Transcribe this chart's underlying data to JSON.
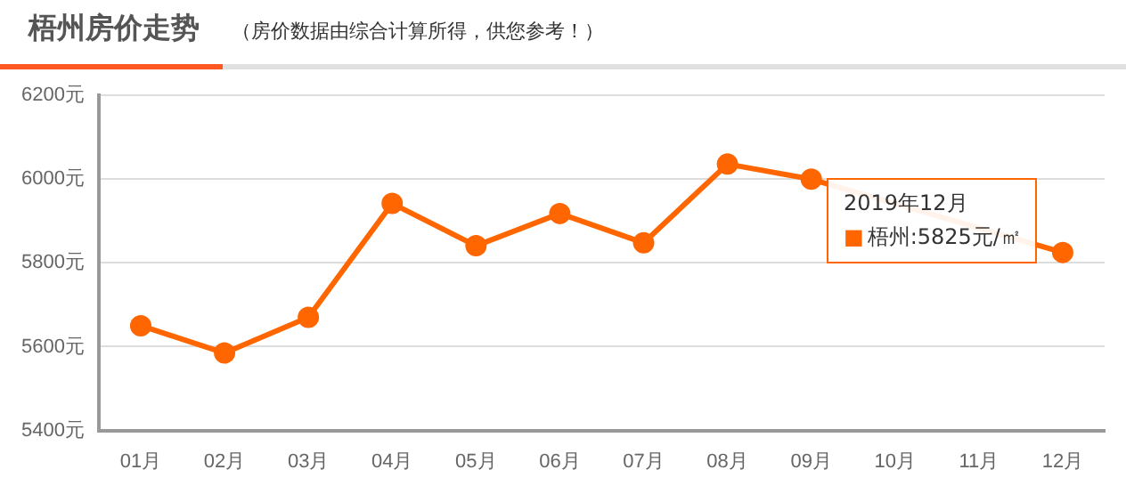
{
  "chart_data": {
    "type": "line",
    "title": "梧州房价走势",
    "subtitle": "（房价数据由综合计算所得，供您参考！）",
    "categories": [
      "01月",
      "02月",
      "03月",
      "04月",
      "05月",
      "06月",
      "07月",
      "08月",
      "09月",
      "10月",
      "11月",
      "12月"
    ],
    "series": [
      {
        "color": "#ff6600",
        "values": [
          5650,
          5585,
          5670,
          5942,
          5841,
          5918,
          5848,
          6036,
          6000,
          null,
          null,
          5825
        ]
      }
    ],
    "ylim": [
      5400,
      6200
    ],
    "yticks": [
      {
        "value": 5400,
        "label": "5400元"
      },
      {
        "value": 5600,
        "label": "5600元"
      },
      {
        "value": 5800,
        "label": "5800元"
      },
      {
        "value": 6000,
        "label": "6000元"
      },
      {
        "value": 6200,
        "label": "6200元"
      }
    ],
    "annotations": [
      "2019年12月",
      "■梧州:5825元/㎡"
    ],
    "grid": "y",
    "legend": false,
    "marker": "circle",
    "line_style": "solid"
  }
}
